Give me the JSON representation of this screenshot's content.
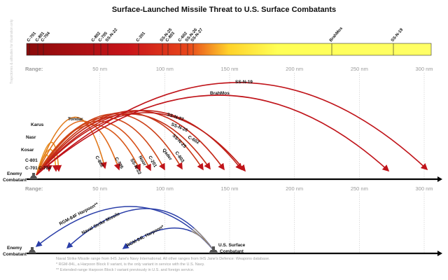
{
  "title": "Surface-Launched Missile Threat to U.S. Surface Combatants",
  "range_label": "Range:",
  "ticks": [
    "50 nm",
    "100 nm",
    "150 nm",
    "200 nm",
    "250 nm",
    "300 nm"
  ],
  "bar_labels": [
    "C-701",
    "C-801",
    "C-704",
    "C-802",
    "C-705",
    "SS-N-22",
    "C-201",
    "SS-N-25",
    "C-803",
    "C-602",
    "SS-N-26",
    "SS-N-27",
    "BrahMos",
    "SS-N-19"
  ],
  "origin_labels": [
    "Karus",
    "Nasr",
    "Kosar",
    "C-801",
    "C-701",
    "C-704"
  ],
  "missile_labels": [
    "Tondar",
    "SS-N-27",
    "SS-N-26",
    "C-602",
    "SS-N-25",
    "Qader",
    "C-803",
    "C-201",
    "Noor",
    "SS-N-22",
    "C-705",
    "C-802",
    "BrahMos",
    "SS-N-19"
  ],
  "enemy_label": [
    "Enemy",
    "Combatant"
  ],
  "harpoon_labels": [
    "RGM-84F Harpoon**",
    "Naval Strike Missile",
    "RGM-84L Harpoon*"
  ],
  "us_label": [
    "U.S. Surface",
    "Combatant"
  ],
  "side_note": "Trajectories & altitudes for illustration only",
  "footnotes": [
    "Naval Strike Missile range from IHS Jane's Navy International. All other ranges from IHS Jane's Defence: Weapons database.",
    "* RGM-84L, a Harpoon Block II variant, is the only variant in service with the U.S. Navy.",
    "** Extended-range Harpoon Block I variant previously in U.S. and foreign service."
  ],
  "colors": {
    "red": "#c0141a",
    "orange": "#f5a623",
    "yellow": "#ffff44",
    "blue": "#2a3ea8"
  }
}
